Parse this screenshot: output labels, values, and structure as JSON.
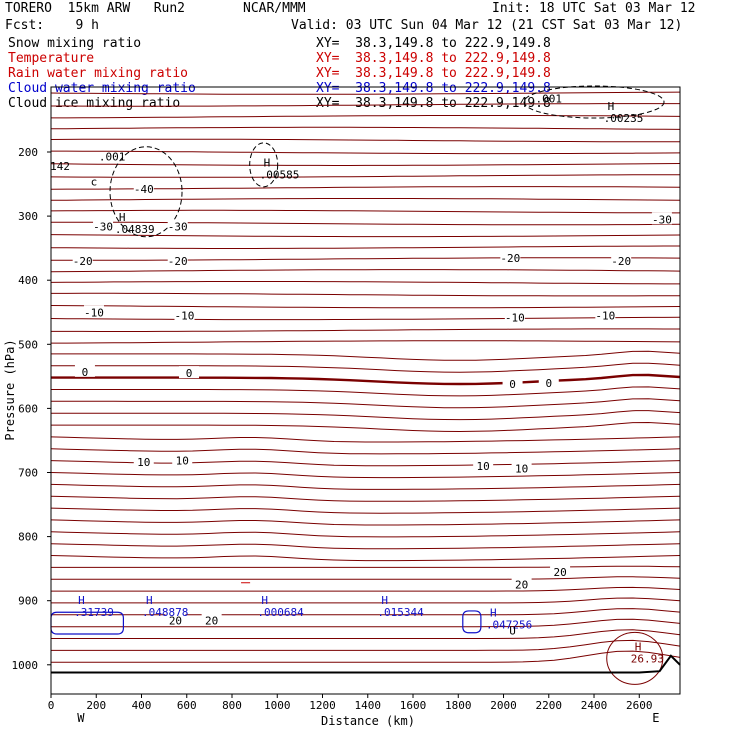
{
  "header": {
    "model": "TORERO  15km ARW   Run2",
    "org": "NCAR/MMM",
    "init": "Init: 18 UTC Sat 03 Mar 12",
    "fcst": "Fcst:    9 h",
    "valid": "Valid: 03 UTC Sun 04 Mar 12 (21 CST Sat 03 Mar 12)"
  },
  "legend": [
    {
      "name": "Snow mixing ratio",
      "color": "#000000",
      "xy": "XY=  38.3,149.8 to 222.9,149.8"
    },
    {
      "name": "Temperature",
      "color": "#cc0000",
      "xy": "XY=  38.3,149.8 to 222.9,149.8"
    },
    {
      "name": "Rain water mixing ratio",
      "color": "#cc0000",
      "xy": "XY=  38.3,149.8 to 222.9,149.8"
    },
    {
      "name": "Cloud water mixing ratio",
      "color": "#0000cc",
      "xy": "XY=  38.3,149.8 to 222.9,149.8"
    },
    {
      "name": "Cloud ice mixing ratio",
      "color": "#000000",
      "xy": "XY=  38.3,149.8 to 222.9,149.8"
    }
  ],
  "colors": {
    "temperature": "#7a0000",
    "freezing": "#7a0000",
    "cloud_water": "#1010c8",
    "cloud_ice": "#000000",
    "terrain": "#000000"
  },
  "chart_data": {
    "type": "contour",
    "xlabel": "Distance (km)",
    "ylabel": "Pressure (hPa)",
    "x_ticks": [
      0,
      200,
      400,
      600,
      800,
      1000,
      1200,
      1400,
      1600,
      1800,
      2000,
      2200,
      2400,
      2600
    ],
    "y_ticks": [
      200,
      300,
      400,
      500,
      600,
      700,
      800,
      900,
      1000
    ],
    "x_end_labels": {
      "left": "W",
      "right": "E"
    },
    "xlim": [
      0,
      2780
    ],
    "ylim": [
      1050,
      100
    ],
    "temperature_isotherms": [
      {
        "label": "-40",
        "labels_at": [
          {
            "x": 410,
            "p": 258
          }
        ]
      },
      {
        "label": "-30",
        "labels_at": [
          {
            "x": 230,
            "p": 316
          },
          {
            "x": 560,
            "p": 316
          },
          {
            "x": 2700,
            "p": 305
          }
        ]
      },
      {
        "label": "-20",
        "labels_at": [
          {
            "x": 140,
            "p": 370
          },
          {
            "x": 560,
            "p": 370
          },
          {
            "x": 2030,
            "p": 365
          },
          {
            "x": 2520,
            "p": 370
          }
        ]
      },
      {
        "label": "-10",
        "labels_at": [
          {
            "x": 190,
            "p": 450
          },
          {
            "x": 590,
            "p": 455
          },
          {
            "x": 2050,
            "p": 458
          },
          {
            "x": 2450,
            "p": 455
          }
        ]
      },
      {
        "label": "0",
        "labels_at": [
          {
            "x": 150,
            "p": 543
          },
          {
            "x": 610,
            "p": 545
          },
          {
            "x": 2040,
            "p": 562
          },
          {
            "x": 2200,
            "p": 560
          }
        ]
      },
      {
        "label": "10",
        "labels_at": [
          {
            "x": 410,
            "p": 684
          },
          {
            "x": 580,
            "p": 681
          },
          {
            "x": 1910,
            "p": 690
          },
          {
            "x": 2080,
            "p": 694
          }
        ]
      },
      {
        "label": "20",
        "labels_at": [
          {
            "x": 550,
            "p": 931
          },
          {
            "x": 710,
            "p": 931
          },
          {
            "x": 2080,
            "p": 875
          },
          {
            "x": 2250,
            "p": 855
          }
        ]
      }
    ],
    "maxima": [
      {
        "field": "cloud_water",
        "label": "H",
        "value": ".31739",
        "x": 120,
        "p": 918
      },
      {
        "field": "cloud_water",
        "label": "H",
        "value": ".048878",
        "x": 420,
        "p": 918
      },
      {
        "field": "cloud_water",
        "label": "H",
        "value": ".000684",
        "x": 930,
        "p": 918
      },
      {
        "field": "cloud_water",
        "label": "H",
        "value": ".015344",
        "x": 1460,
        "p": 918
      },
      {
        "field": "cloud_water",
        "label": "H",
        "value": ".047256",
        "x": 1940,
        "p": 937
      },
      {
        "field": "cloud_ice",
        "label": "H",
        "value": ".04839",
        "x": 300,
        "p": 320
      },
      {
        "field": "cloud_ice",
        "label": "H",
        "value": ".00585",
        "x": 940,
        "p": 235
      },
      {
        "field": "cloud_ice",
        "label": "H",
        "value": ".00235",
        "x": 2460,
        "p": 147
      },
      {
        "field": "rain",
        "label": "H",
        "value": "26.93",
        "x": 2580,
        "p": 990
      }
    ],
    "other_labels": [
      {
        "text": ".001",
        "x": 270,
        "p": 213
      },
      {
        "text": ".001",
        "x": 2200,
        "p": 123
      },
      {
        "text": "142",
        "x": 40,
        "p": 228
      },
      {
        "text": "c",
        "x": 190,
        "p": 252
      },
      {
        "text": "U",
        "x": 2040,
        "p": 953
      }
    ],
    "terrain_pressure": [
      [
        0,
        1012
      ],
      [
        1000,
        1012
      ],
      [
        2600,
        1012
      ],
      [
        2690,
        1010
      ],
      [
        2740,
        986
      ],
      [
        2780,
        1000
      ]
    ]
  }
}
